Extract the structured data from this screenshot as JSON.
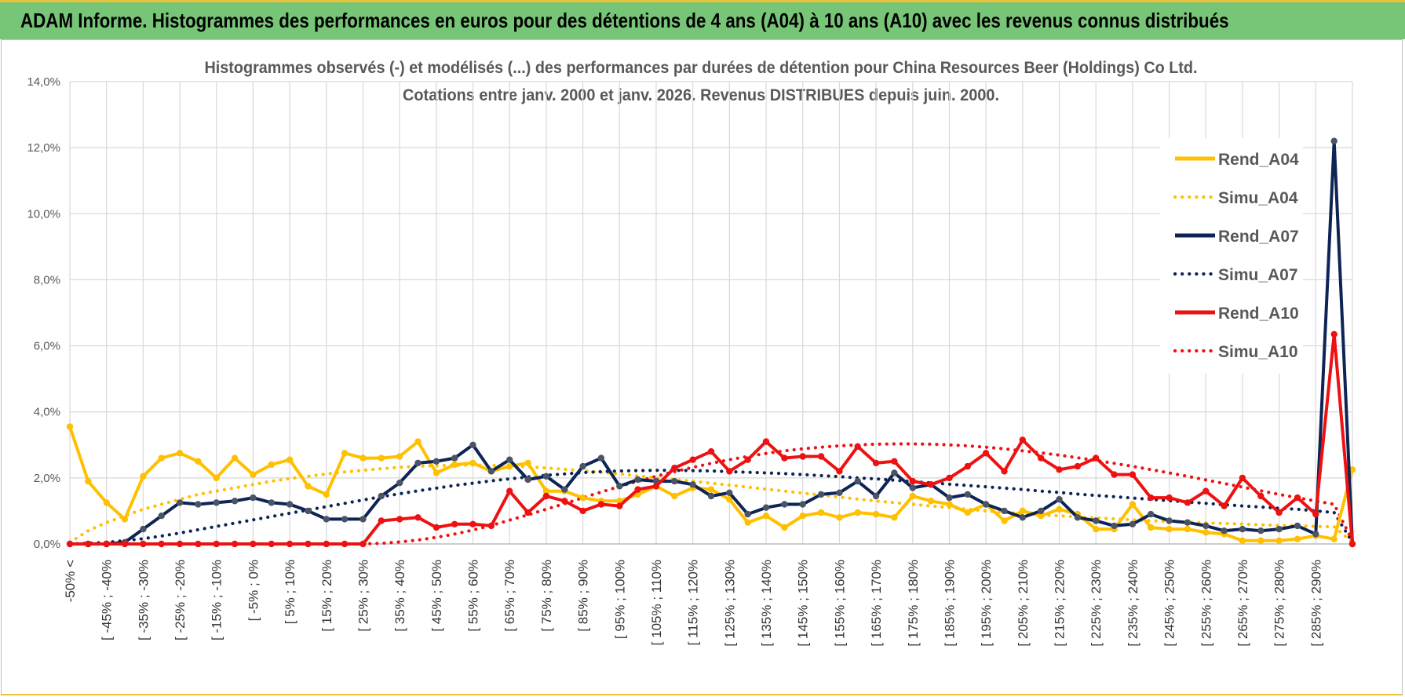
{
  "page_title": "ADAM Informe. Histogrammes des performances en euros pour des détentions de 4 ans (A04) à 10 ans (A10) avec les revenus connus distribués",
  "colors": {
    "banner": "#77c677",
    "gold": "#ffc000",
    "navy": "#0d2455",
    "red": "#ee1111"
  },
  "chart_data": {
    "type": "line",
    "title": "Histogrammes observés (-) et modélisés (...) des performances par durées de détention pour China Resources Beer (Holdings) Co Ltd.",
    "subtitle": "Cotations entre janv. 2000 et janv. 2026. Revenus DISTRIBUES depuis juin. 2000.",
    "ylim": [
      0,
      14
    ],
    "y_ticks": [
      "0,0%",
      "2,0%",
      "4,0%",
      "6,0%",
      "8,0%",
      "10,0%",
      "12,0%",
      "14,0%"
    ],
    "grid": true,
    "legend_position": "right",
    "x_tick_labels": [
      "-50% <",
      "[ -45% ; -40%",
      "[ -35% ; -30%",
      "[ -25% ; -20%",
      "[ -15% ; -10%",
      "[ -5% ; 0%",
      "[ 5% ; 10%",
      "[ 15% ; 20%",
      "[ 25% ; 30%",
      "[ 35% ; 40%",
      "[ 45% ; 50%",
      "[ 55% ; 60%",
      "[ 65% ; 70%",
      "[ 75% ; 80%",
      "[ 85% ; 90%",
      "[ 95% ; 100%",
      "[ 105% ; 110%",
      "[ 115% ; 120%",
      "[ 125% ; 130%",
      "[ 135% ; 140%",
      "[ 145% ; 150%",
      "[ 155% ; 160%",
      "[ 165% ; 170%",
      "[ 175% ; 180%",
      "[ 185% ; 190%",
      "[ 195% ; 200%",
      "[ 205% ; 210%",
      "[ 215% ; 220%",
      "[ 225% ; 230%",
      "[ 235% ; 240%",
      "[ 245% ; 250%",
      "[ 255% ; 260%",
      "[ 265% ; 270%",
      "[ 275% ; 280%",
      "[ 285% ; 290%"
    ],
    "series": [
      {
        "name": "Rend_A04",
        "style": "solid",
        "color": "#ffc000",
        "values": [
          3.55,
          1.9,
          1.25,
          0.75,
          2.05,
          2.6,
          2.75,
          2.5,
          2.0,
          2.6,
          2.1,
          2.4,
          2.55,
          1.75,
          1.5,
          2.75,
          2.6,
          2.6,
          2.65,
          3.1,
          2.15,
          2.4,
          2.45,
          2.2,
          2.35,
          2.45,
          1.6,
          1.6,
          1.4,
          1.3,
          1.3,
          1.5,
          1.75,
          1.45,
          1.7,
          1.65,
          1.35,
          0.65,
          0.85,
          0.5,
          0.85,
          0.95,
          0.8,
          0.95,
          0.9,
          0.8,
          1.45,
          1.3,
          1.2,
          0.95,
          1.2,
          0.7,
          1.0,
          0.85,
          1.05,
          0.9,
          0.45,
          0.45,
          1.2,
          0.5,
          0.45,
          0.45,
          0.35,
          0.3,
          0.1,
          0.1,
          0.1,
          0.15,
          0.25,
          0.15,
          2.25
        ]
      },
      {
        "name": "Simu_A04",
        "style": "dotted",
        "color": "#ffc000",
        "values": [
          0.05,
          0.4,
          0.65,
          0.85,
          1.05,
          1.2,
          1.35,
          1.5,
          1.6,
          1.7,
          1.8,
          1.9,
          1.98,
          2.05,
          2.12,
          2.18,
          2.23,
          2.28,
          2.32,
          2.35,
          2.37,
          2.38,
          2.39,
          2.38,
          2.36,
          2.34,
          2.3,
          2.26,
          2.22,
          2.17,
          2.12,
          2.06,
          2.0,
          1.95,
          1.9,
          1.84,
          1.78,
          1.72,
          1.66,
          1.6,
          1.54,
          1.48,
          1.42,
          1.36,
          1.3,
          1.25,
          1.2,
          1.15,
          1.1,
          1.05,
          1.0,
          0.96,
          0.92,
          0.88,
          0.85,
          0.82,
          0.79,
          0.76,
          0.73,
          0.7,
          0.68,
          0.66,
          0.64,
          0.62,
          0.6,
          0.58,
          0.56,
          0.55,
          0.53,
          0.52,
          0.05
        ]
      },
      {
        "name": "Rend_A07",
        "style": "solid",
        "color": "#0d2455",
        "values": [
          0.0,
          0.0,
          0.0,
          0.05,
          0.45,
          0.85,
          1.25,
          1.2,
          1.25,
          1.3,
          1.4,
          1.25,
          1.2,
          1.0,
          0.75,
          0.75,
          0.75,
          1.45,
          1.85,
          2.45,
          2.5,
          2.6,
          3.0,
          2.2,
          2.55,
          1.95,
          2.05,
          1.65,
          2.35,
          2.6,
          1.75,
          1.95,
          1.9,
          1.9,
          1.8,
          1.45,
          1.55,
          0.9,
          1.1,
          1.2,
          1.2,
          1.5,
          1.55,
          1.9,
          1.45,
          2.15,
          1.7,
          1.8,
          1.4,
          1.5,
          1.2,
          1.0,
          0.8,
          1.0,
          1.35,
          0.8,
          0.7,
          0.55,
          0.6,
          0.9,
          0.7,
          0.65,
          0.55,
          0.4,
          0.45,
          0.4,
          0.45,
          0.55,
          0.3,
          12.2,
          0.0
        ]
      },
      {
        "name": "Simu_A07",
        "style": "dotted",
        "color": "#0d2455",
        "values": [
          0.0,
          0.02,
          0.05,
          0.1,
          0.16,
          0.24,
          0.33,
          0.43,
          0.53,
          0.63,
          0.73,
          0.83,
          0.93,
          1.03,
          1.13,
          1.23,
          1.33,
          1.43,
          1.52,
          1.61,
          1.69,
          1.77,
          1.84,
          1.91,
          1.97,
          2.03,
          2.08,
          2.12,
          2.16,
          2.19,
          2.21,
          2.22,
          2.23,
          2.23,
          2.22,
          2.21,
          2.19,
          2.17,
          2.15,
          2.13,
          2.1,
          2.07,
          2.04,
          2.0,
          1.97,
          1.93,
          1.89,
          1.85,
          1.81,
          1.77,
          1.73,
          1.69,
          1.65,
          1.6,
          1.56,
          1.51,
          1.47,
          1.43,
          1.39,
          1.35,
          1.31,
          1.27,
          1.23,
          1.19,
          1.15,
          1.12,
          1.08,
          1.05,
          1.0,
          0.95,
          0.05
        ]
      },
      {
        "name": "Rend_A10",
        "style": "solid",
        "color": "#ee1111",
        "values": [
          0.0,
          0.0,
          0.0,
          0.0,
          0.0,
          0.0,
          0.0,
          0.0,
          0.0,
          0.0,
          0.0,
          0.0,
          0.0,
          0.0,
          0.0,
          0.0,
          0.0,
          0.7,
          0.75,
          0.8,
          0.5,
          0.6,
          0.6,
          0.55,
          1.6,
          0.95,
          1.45,
          1.3,
          1.0,
          1.2,
          1.15,
          1.65,
          1.75,
          2.3,
          2.55,
          2.8,
          2.2,
          2.55,
          3.1,
          2.6,
          2.65,
          2.65,
          2.2,
          2.95,
          2.45,
          2.5,
          1.9,
          1.8,
          2.0,
          2.35,
          2.75,
          2.2,
          3.15,
          2.6,
          2.25,
          2.35,
          2.6,
          2.1,
          2.1,
          1.4,
          1.4,
          1.25,
          1.6,
          1.15,
          2.0,
          1.45,
          0.95,
          1.4,
          0.9,
          6.35,
          0.0
        ]
      },
      {
        "name": "Simu_A10",
        "style": "dotted",
        "color": "#ee1111",
        "values": [
          0.0,
          0.0,
          0.0,
          0.0,
          0.0,
          0.0,
          0.0,
          0.0,
          0.0,
          0.0,
          0.0,
          0.0,
          0.0,
          0.0,
          0.0,
          0.0,
          0.0,
          0.02,
          0.06,
          0.12,
          0.2,
          0.3,
          0.42,
          0.56,
          0.72,
          0.88,
          1.05,
          1.22,
          1.4,
          1.57,
          1.74,
          1.9,
          2.05,
          2.19,
          2.32,
          2.44,
          2.55,
          2.65,
          2.74,
          2.82,
          2.88,
          2.93,
          2.97,
          3.0,
          3.02,
          3.03,
          3.03,
          3.02,
          3.0,
          2.97,
          2.93,
          2.88,
          2.82,
          2.76,
          2.69,
          2.61,
          2.53,
          2.44,
          2.35,
          2.25,
          2.15,
          2.05,
          1.94,
          1.83,
          1.72,
          1.61,
          1.5,
          1.4,
          1.3,
          1.2,
          0.1
        ]
      }
    ]
  }
}
